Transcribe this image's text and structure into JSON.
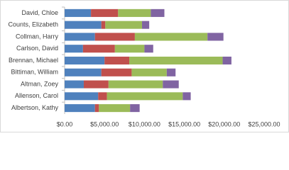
{
  "chart_data": {
    "type": "stacked-bar-horizontal",
    "categories": [
      "David, Chloe",
      "Counts, Elizabeth",
      "Collman, Harry",
      "Carlson, David",
      "Brennan, Michael",
      "Bittiman, William",
      "Altman, Zoey",
      "Allenson, Carol",
      "Albertson, Kathy"
    ],
    "series": [
      {
        "color": "#4f81bd",
        "values": [
          3300,
          4600,
          3800,
          2300,
          5000,
          4600,
          2400,
          4200,
          3800
        ]
      },
      {
        "color": "#c0504d",
        "values": [
          3400,
          500,
          5000,
          4000,
          3100,
          3800,
          3100,
          1100,
          500
        ]
      },
      {
        "color": "#9bbb59",
        "values": [
          4100,
          4600,
          9100,
          3700,
          11700,
          4400,
          6800,
          9500,
          3900
        ]
      },
      {
        "color": "#8064a2",
        "values": [
          1700,
          900,
          2000,
          1100,
          1100,
          1100,
          2000,
          1000,
          1200
        ]
      }
    ],
    "xlim": [
      0,
      25000
    ],
    "xticks": [
      {
        "value": 0,
        "label": "$0.00"
      },
      {
        "value": 5000,
        "label": "$5,000.00"
      },
      {
        "value": 10000,
        "label": "$10,000.00"
      },
      {
        "value": 15000,
        "label": "$15,000.00"
      },
      {
        "value": 20000,
        "label": "$20,000.00"
      },
      {
        "value": 25000,
        "label": "$25,000.00"
      }
    ],
    "grid": false
  }
}
